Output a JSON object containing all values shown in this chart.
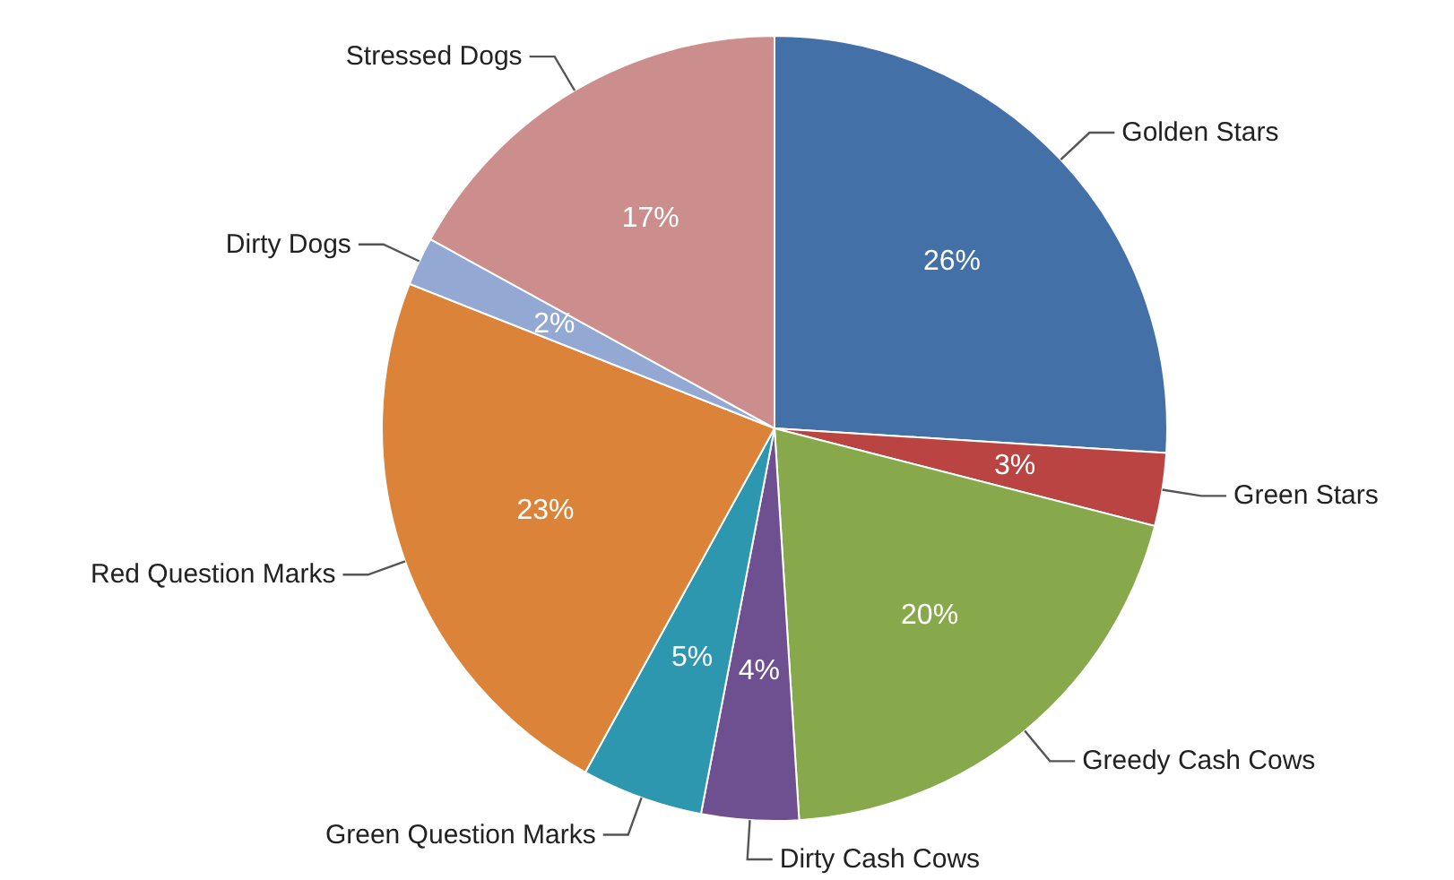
{
  "chart_data": {
    "type": "pie",
    "categories": [
      "Golden Stars",
      "Green Stars",
      "Greedy Cash Cows",
      "Dirty Cash Cows",
      "Green Question Marks",
      "Red Question Marks",
      "Dirty Dogs",
      "Stressed Dogs"
    ],
    "values": [
      26,
      3,
      20,
      4,
      5,
      23,
      2,
      17
    ],
    "colors": [
      "#4470a8",
      "#b94441",
      "#88a84c",
      "#6e5090",
      "#2e97b0",
      "#dc833a",
      "#93a9d3",
      "#cc8e8c"
    ],
    "value_labels": [
      "26%",
      "3%",
      "20%",
      "4%",
      "5%",
      "23%",
      "2%",
      "17%"
    ],
    "legend": false
  }
}
